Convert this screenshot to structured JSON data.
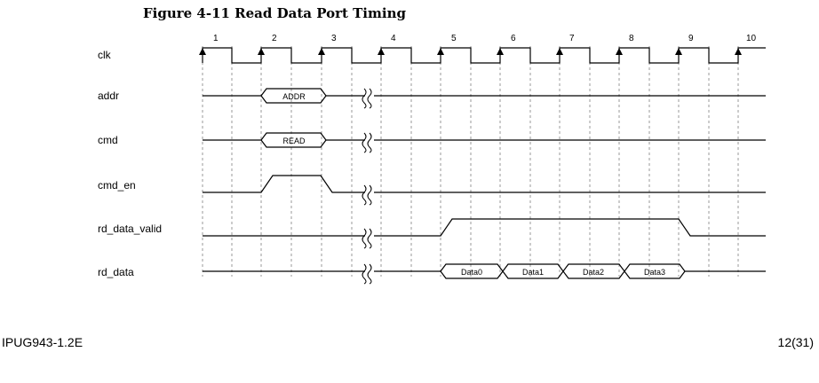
{
  "figure": {
    "title": "Figure 4-11 Read Data Port Timing"
  },
  "footer": {
    "doc_id": "IPUG943-1.2E",
    "page": "12(31)"
  },
  "timing": {
    "cycles": [
      "1",
      "2",
      "3",
      "4",
      "5",
      "6",
      "7",
      "8",
      "9",
      "10"
    ],
    "signals": [
      {
        "id": "clk",
        "label": "clk"
      },
      {
        "id": "addr",
        "label": "addr",
        "bus_label": "ADDR"
      },
      {
        "id": "cmd",
        "label": "cmd",
        "bus_label": "READ"
      },
      {
        "id": "cmd_en",
        "label": "cmd_en"
      },
      {
        "id": "rd_data_valid",
        "label": "rd_data_valid"
      },
      {
        "id": "rd_data",
        "label": "rd_data",
        "bus_labels": [
          "Data0",
          "Data1",
          "Data2",
          "Data3"
        ]
      }
    ]
  }
}
